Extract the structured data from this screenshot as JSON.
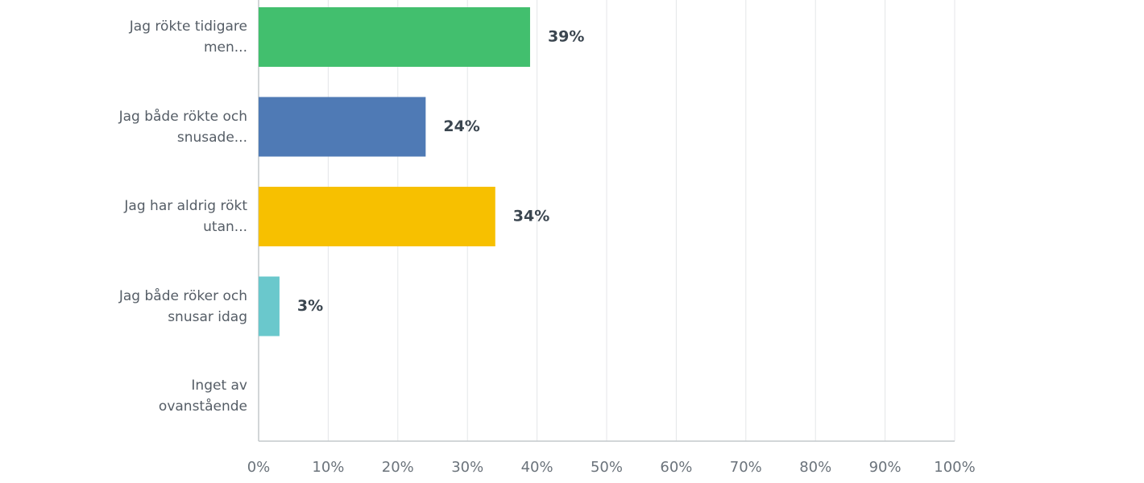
{
  "chart_data": {
    "type": "hbar",
    "categories": [
      "Jag rökte tidigare men...",
      "Jag både rökte och snusade...",
      "Jag har aldrig rökt utan...",
      "Jag både röker och snusar idag",
      "Inget av ovanstående"
    ],
    "values": [
      39,
      24,
      34,
      3,
      0
    ],
    "value_labels": [
      "39%",
      "24%",
      "34%",
      "3%",
      null
    ],
    "colors": [
      "#42bf6e",
      "#4f7ab5",
      "#f7c000",
      "#6ac8cc",
      "#e8734a"
    ],
    "xlim": [
      0,
      100
    ],
    "xticks": [
      {
        "value": 0,
        "label": "0%"
      },
      {
        "value": 10,
        "label": "10%"
      },
      {
        "value": 20,
        "label": "20%"
      },
      {
        "value": 30,
        "label": "30%"
      },
      {
        "value": 40,
        "label": "40%"
      },
      {
        "value": 50,
        "label": "50%"
      },
      {
        "value": 60,
        "label": "60%"
      },
      {
        "value": 70,
        "label": "70%"
      },
      {
        "value": 80,
        "label": "80%"
      },
      {
        "value": 90,
        "label": "90%"
      },
      {
        "value": 100,
        "label": "100%"
      }
    ],
    "grid": true
  }
}
